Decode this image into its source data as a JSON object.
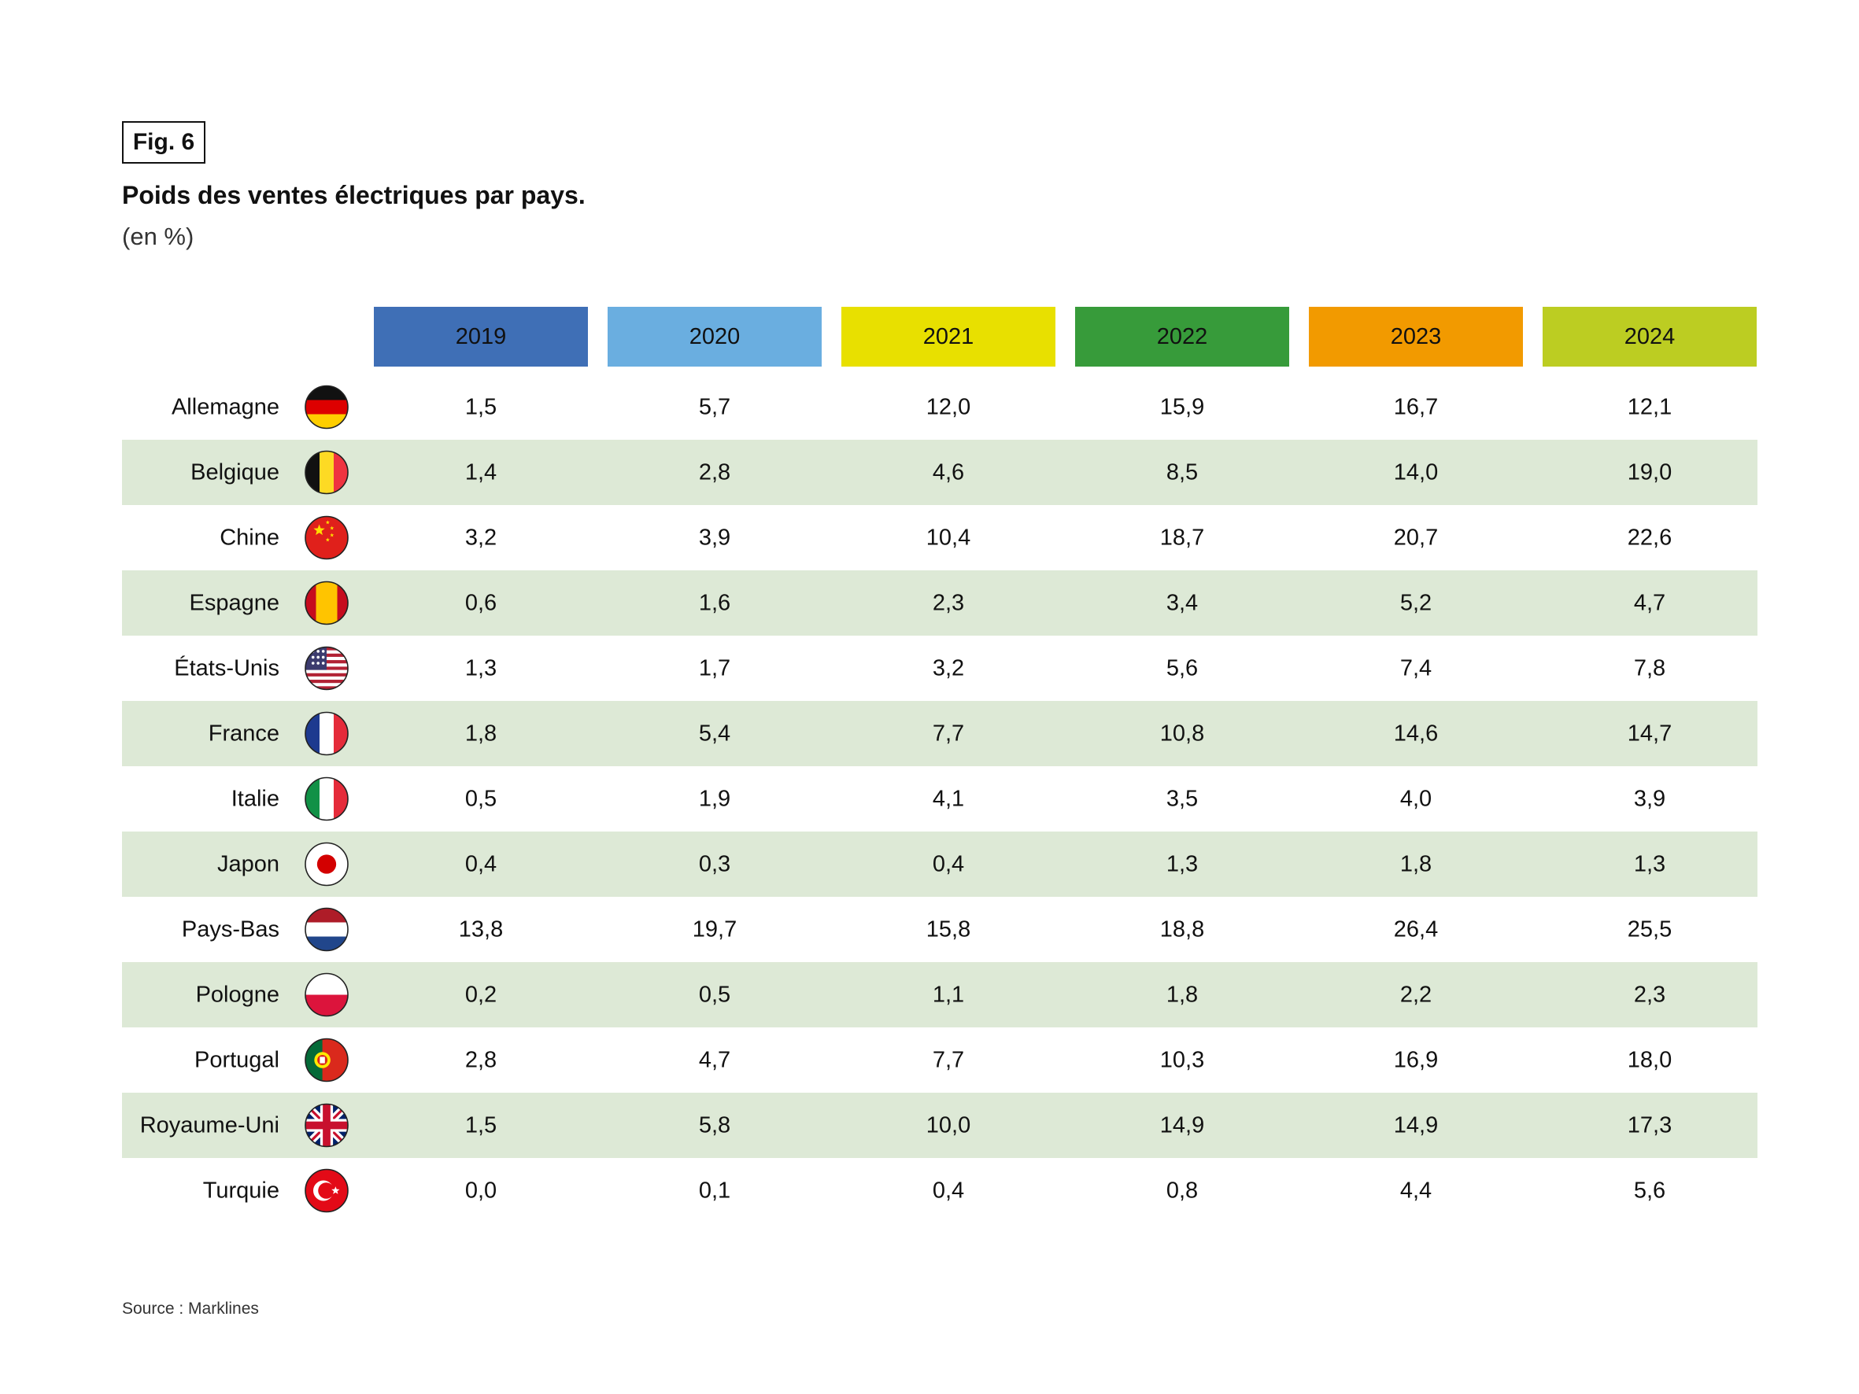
{
  "figure": {
    "label": "Fig. 6",
    "title": "Poids des ventes électriques par pays.",
    "unit": "(en %)",
    "source": "Source : Marklines"
  },
  "colors": {
    "header": [
      "#3f6fb6",
      "#6aaee0",
      "#e8e000",
      "#379b3a",
      "#f29a00",
      "#bccd22"
    ],
    "stripe": "#dde9d6",
    "text": "#111111"
  },
  "chart_data": {
    "type": "table",
    "title": "Poids des ventes électriques par pays.",
    "unit": "(en %)",
    "columns": [
      "2019",
      "2020",
      "2021",
      "2022",
      "2023",
      "2024"
    ],
    "rows": [
      {
        "country": "Allemagne",
        "flag": "germany-flag-icon",
        "values": [
          "1,5",
          "5,7",
          "12,0",
          "15,9",
          "16,7",
          "12,1"
        ]
      },
      {
        "country": "Belgique",
        "flag": "belgium-flag-icon",
        "values": [
          "1,4",
          "2,8",
          "4,6",
          "8,5",
          "14,0",
          "19,0"
        ]
      },
      {
        "country": "Chine",
        "flag": "china-flag-icon",
        "values": [
          "3,2",
          "3,9",
          "10,4",
          "18,7",
          "20,7",
          "22,6"
        ]
      },
      {
        "country": "Espagne",
        "flag": "spain-flag-icon",
        "values": [
          "0,6",
          "1,6",
          "2,3",
          "3,4",
          "5,2",
          "4,7"
        ]
      },
      {
        "country": "États-Unis",
        "flag": "usa-flag-icon",
        "values": [
          "1,3",
          "1,7",
          "3,2",
          "5,6",
          "7,4",
          "7,8"
        ]
      },
      {
        "country": "France",
        "flag": "france-flag-icon",
        "values": [
          "1,8",
          "5,4",
          "7,7",
          "10,8",
          "14,6",
          "14,7"
        ]
      },
      {
        "country": "Italie",
        "flag": "italy-flag-icon",
        "values": [
          "0,5",
          "1,9",
          "4,1",
          "3,5",
          "4,0",
          "3,9"
        ]
      },
      {
        "country": "Japon",
        "flag": "japan-flag-icon",
        "values": [
          "0,4",
          "0,3",
          "0,4",
          "1,3",
          "1,8",
          "1,3"
        ]
      },
      {
        "country": "Pays-Bas",
        "flag": "netherlands-flag-icon",
        "values": [
          "13,8",
          "19,7",
          "15,8",
          "18,8",
          "26,4",
          "25,5"
        ]
      },
      {
        "country": "Pologne",
        "flag": "poland-flag-icon",
        "values": [
          "0,2",
          "0,5",
          "1,1",
          "1,8",
          "2,2",
          "2,3"
        ]
      },
      {
        "country": "Portugal",
        "flag": "portugal-flag-icon",
        "values": [
          "2,8",
          "4,7",
          "7,7",
          "10,3",
          "16,9",
          "18,0"
        ]
      },
      {
        "country": "Royaume-Uni",
        "flag": "uk-flag-icon",
        "values": [
          "1,5",
          "5,8",
          "10,0",
          "14,9",
          "14,9",
          "17,3"
        ]
      },
      {
        "country": "Turquie",
        "flag": "turkey-flag-icon",
        "values": [
          "0,0",
          "0,1",
          "0,4",
          "0,8",
          "4,4",
          "5,6"
        ]
      }
    ]
  }
}
